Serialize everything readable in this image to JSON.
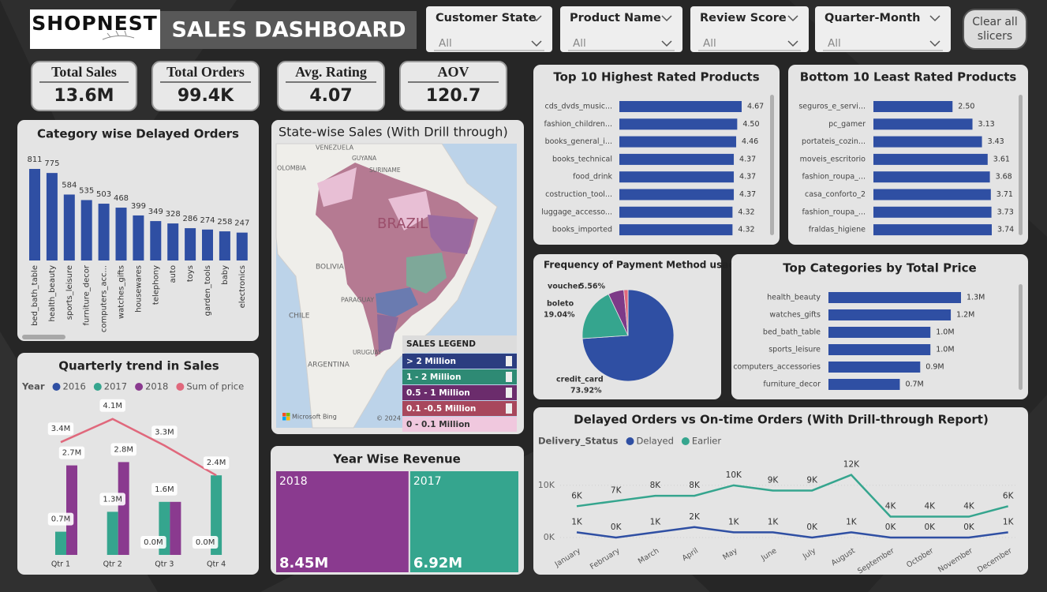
{
  "header": {
    "brand": "SHOPNEST",
    "title": "SALES DASHBOARD"
  },
  "slicers": [
    {
      "label": "Customer State",
      "value": "All"
    },
    {
      "label": "Product Name",
      "value": "All"
    },
    {
      "label": "Review Score",
      "value": "All"
    },
    {
      "label": "Quarter-Month",
      "value": "All"
    }
  ],
  "clear_button": "Clear all slicers",
  "kpis": [
    {
      "label": "Total Sales",
      "value": "13.6M"
    },
    {
      "label": "Total Orders",
      "value": "99.4K"
    },
    {
      "label": "Avg. Rating",
      "value": "4.07"
    },
    {
      "label": "AOV",
      "value": "120.7"
    }
  ],
  "chart_data": [
    {
      "type": "bar",
      "title": "Category wise Delayed Orders",
      "categories": [
        "bed_bath_table",
        "health_beauty",
        "sports_leisure",
        "furniture_decor",
        "computers_acc...",
        "watches_gifts",
        "housewares",
        "telephony",
        "auto",
        "toys",
        "garden_tools",
        "baby",
        "electronics"
      ],
      "values": [
        811,
        775,
        584,
        535,
        503,
        468,
        399,
        349,
        328,
        286,
        274,
        258,
        247
      ],
      "color": "#2f4fa3"
    },
    {
      "type": "map",
      "title": "State-wise Sales (With Drill through)",
      "labels": [
        "VENEZUELA",
        "GUYANA",
        "SURINAME",
        "OLOMBIA",
        "BRAZIL",
        "BOLIVIA",
        "PARAGUAY",
        "CHILE",
        "ARGENTINA",
        "URUGUAY"
      ],
      "attribution": "Microsoft Bing",
      "copyright": "© 2024",
      "legend": {
        "title": "SALES LEGEND",
        "items": [
          {
            "name": "> 2 Million",
            "color": "#2b3d80"
          },
          {
            "name": "1 - 2 Million",
            "color": "#2e8a74"
          },
          {
            "name": "0.5 - 1 Million",
            "color": "#6b2c6c"
          },
          {
            "name": "0.1 -0.5 Million",
            "color": "#a8475c"
          },
          {
            "name": "0 - 0.1 Million",
            "color": "#f0c8de"
          }
        ]
      }
    },
    {
      "type": "hbar",
      "title": "Top 10 Highest Rated Products",
      "categories": [
        "cds_dvds_music...",
        "fashion_children...",
        "books_general_i...",
        "books_technical",
        "food_drink",
        "costruction_tool...",
        "luggage_accesso...",
        "books_imported"
      ],
      "values": [
        4.67,
        4.5,
        4.46,
        4.37,
        4.37,
        4.37,
        4.32,
        4.32
      ],
      "value_labels": [
        "4.67",
        "4.50",
        "4.46",
        "4.37",
        "4.37",
        "4.37",
        "4.32",
        "4.32"
      ],
      "color": "#2f4fa3"
    },
    {
      "type": "hbar",
      "title": "Bottom 10 Least Rated Products",
      "categories": [
        "seguros_e_servi...",
        "pc_gamer",
        "portateis_cozin...",
        "moveis_escritorio",
        "fashion_roupa_...",
        "casa_conforto_2",
        "fashion_roupa_...",
        "fraldas_higiene"
      ],
      "values": [
        2.5,
        3.13,
        3.43,
        3.61,
        3.68,
        3.71,
        3.73,
        3.74
      ],
      "value_labels": [
        "2.50",
        "3.13",
        "3.43",
        "3.61",
        "3.68",
        "3.71",
        "3.73",
        "3.74"
      ],
      "color": "#2f4fa3"
    },
    {
      "type": "pie",
      "title": "Frequency of Payment Method usage",
      "categories": [
        "credit_card",
        "boleto",
        "voucher",
        null
      ],
      "values": [
        73.92,
        19.04,
        5.56,
        1.48
      ],
      "value_labels": [
        "73.92%",
        "19.04%",
        "5.56%",
        null
      ],
      "colors": [
        "#2f4fa3",
        "#35a58e",
        "#7d3a88",
        "#e0687c"
      ]
    },
    {
      "type": "hbar",
      "title": "Top Categories by Total Price",
      "categories": [
        "health_beauty",
        "watches_gifts",
        "bed_bath_table",
        "sports_leisure",
        "computers_accessories",
        "furniture_decor"
      ],
      "values": [
        1.3,
        1.2,
        1.0,
        1.0,
        0.9,
        0.7
      ],
      "value_labels": [
        "1.3M",
        "1.2M",
        "1.0M",
        "1.0M",
        "0.9M",
        "0.7M"
      ],
      "color": "#2f4fa3"
    },
    {
      "type": "combo",
      "title": "Quarterly trend in Sales",
      "legend_title": "Year",
      "categories": [
        "Qtr 1",
        "Qtr 2",
        "Qtr 3",
        "Qtr 4"
      ],
      "series": [
        {
          "name": "2016",
          "type": "bar",
          "color": "#2f4fa3",
          "values": [
            null,
            null,
            0.0,
            0.0
          ],
          "value_labels": [
            null,
            null,
            "0.0M",
            "0.0M"
          ]
        },
        {
          "name": "2017",
          "type": "bar",
          "color": "#35a58e",
          "values": [
            0.7,
            1.3,
            1.6,
            2.4
          ],
          "value_labels": [
            "0.7M",
            "1.3M",
            "1.6M",
            "2.4M"
          ]
        },
        {
          "name": "2018",
          "type": "bar",
          "color": "#8a3a8f",
          "values": [
            2.7,
            2.8,
            1.6,
            null
          ],
          "value_labels": [
            "2.7M",
            "2.8M",
            null,
            null
          ]
        },
        {
          "name": "Sum of price",
          "type": "line",
          "color": "#e0687c",
          "values": [
            3.4,
            4.1,
            3.3,
            2.4
          ],
          "value_labels": [
            "3.4M",
            "4.1M",
            "3.3M",
            null
          ]
        }
      ]
    },
    {
      "type": "treemap",
      "title": "Year Wise Revenue",
      "categories": [
        "2018",
        "2017"
      ],
      "values": [
        8.45,
        6.92
      ],
      "value_labels": [
        "8.45M",
        "6.92M"
      ],
      "colors": [
        "#8a3a8f",
        "#35a58e"
      ]
    },
    {
      "type": "line",
      "title": "Delayed Orders vs On-time Orders (With Drill-through Report)",
      "legend_title": "Delivery_Status",
      "categories": [
        "January",
        "February",
        "March",
        "April",
        "May",
        "June",
        "July",
        "August",
        "September",
        "October",
        "November",
        "December"
      ],
      "series": [
        {
          "name": "Delayed",
          "color": "#2f4fa3",
          "values": [
            1000,
            0,
            1000,
            2000,
            1000,
            1000,
            0,
            1000,
            0,
            0,
            0,
            1000
          ],
          "value_labels": [
            "1K",
            "0K",
            "1K",
            "2K",
            "1K",
            "1K",
            "0K",
            "1K",
            "0K",
            "0K",
            "0K",
            "1K"
          ]
        },
        {
          "name": "Earlier",
          "color": "#35a58e",
          "values": [
            6000,
            7000,
            8000,
            8000,
            10000,
            9000,
            9000,
            12000,
            4000,
            4000,
            4000,
            6000
          ],
          "value_labels": [
            "6K",
            "7K",
            "8K",
            "8K",
            "10K",
            "9K",
            "9K",
            "12K",
            "4K",
            "4K",
            "4K",
            "6K"
          ]
        }
      ],
      "ylim": [
        0,
        13000
      ],
      "yticks": [
        {
          "value": 0,
          "label": "0K"
        },
        {
          "value": 10000,
          "label": "10K"
        }
      ]
    }
  ]
}
